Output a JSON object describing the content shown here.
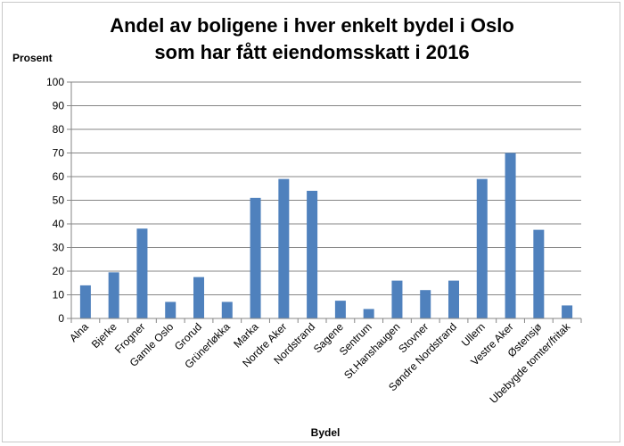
{
  "chart_data": {
    "type": "bar",
    "title_line1": "Andel av boligene i hver enkelt bydel i Oslo",
    "title_line2": "som har fått eiendomsskatt i 2016",
    "ylabel": "Prosent",
    "xlabel": "Bydel",
    "ylim": [
      0,
      100
    ],
    "yticks": [
      0,
      10,
      20,
      30,
      40,
      50,
      60,
      70,
      80,
      90,
      100
    ],
    "grid": true,
    "legend": "none",
    "bar_color": "#4f81bd",
    "categories": [
      "Alna",
      "Bjerke",
      "Frogner",
      "Gamle Oslo",
      "Grorud",
      "Grünerløkka",
      "Marka",
      "Nordre Aker",
      "Nordstrand",
      "Sagene",
      "Sentrum",
      "St.Hanshaugen",
      "Stovner",
      "Søndre Nordstrand",
      "Ullern",
      "Vestre Aker",
      "Østensjø",
      "Ubebygde tomter/fritak"
    ],
    "values": [
      14,
      19.5,
      38,
      7,
      17.5,
      7,
      51,
      59,
      54,
      7.5,
      4,
      16,
      12,
      16,
      59,
      70,
      37.5,
      5.5
    ]
  }
}
